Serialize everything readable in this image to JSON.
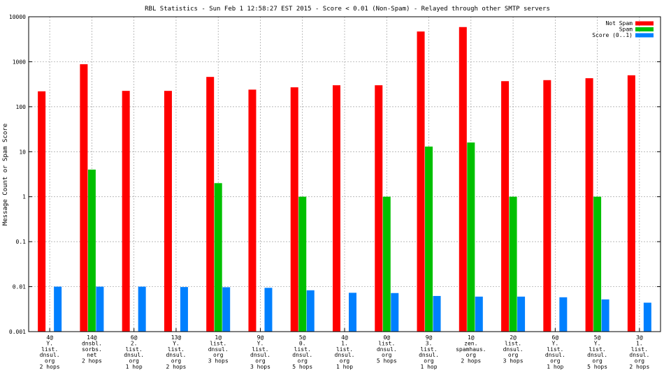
{
  "chart_data": {
    "type": "bar",
    "title": "RBL Statistics - Sun Feb  1 12:58:27 EST 2015 - Score < 0.01 (Non-Spam) - Relayed through other SMTP servers",
    "xlabel": "",
    "ylabel": "Message Count or Spam Score",
    "yscale": "log",
    "ylim": [
      0.001,
      10000
    ],
    "yticks": [
      "0.001",
      "0.01",
      "0.1",
      "1",
      "10",
      "100",
      "1000",
      "10000"
    ],
    "grid": true,
    "legend_position": "top-right",
    "categories": [
      [
        "4@",
        "Y.",
        "list.",
        "dnsul.",
        "org",
        "2 hops"
      ],
      [
        "14@",
        "dnsbl.",
        "sorbs.",
        "net",
        "2 hops"
      ],
      [
        "6@",
        "2.",
        "list.",
        "dnsul.",
        "org",
        "1 hop"
      ],
      [
        "13@",
        "Y.",
        "list.",
        "dnsul.",
        "org",
        "2 hops"
      ],
      [
        "1@",
        "list.",
        "dnsul.",
        "org",
        "3 hops"
      ],
      [
        "9@",
        "Y.",
        "list.",
        "dnsul.",
        "org",
        "3 hops"
      ],
      [
        "5@",
        "0.",
        "list.",
        "dnsul.",
        "org",
        "5 hops"
      ],
      [
        "4@",
        "1.",
        "list.",
        "dnsul.",
        "org",
        "1 hop"
      ],
      [
        "0@",
        "list.",
        "dnsul.",
        "org",
        "5 hops"
      ],
      [
        "9@",
        "3.",
        "list.",
        "dnsul.",
        "org",
        "1 hop"
      ],
      [
        "1@",
        "zen.",
        "spamhaus.",
        "org",
        "2 hops"
      ],
      [
        "2@",
        "list.",
        "dnsul.",
        "org",
        "3 hops"
      ],
      [
        "6@",
        "Y.",
        "list.",
        "dnsul.",
        "org",
        "1 hop"
      ],
      [
        "5@",
        "Y.",
        "list.",
        "dnsul.",
        "org",
        "5 hops"
      ],
      [
        "3@",
        "1.",
        "list.",
        "dnsul.",
        "org",
        "2 hops"
      ]
    ],
    "series": [
      {
        "name": "Not Spam",
        "color": "#ff0000",
        "values": [
          220,
          880,
          225,
          225,
          460,
          240,
          270,
          300,
          300,
          4700,
          5900,
          370,
          390,
          430,
          500
        ]
      },
      {
        "name": "Spam",
        "color": "#00c000",
        "values": [
          null,
          4,
          null,
          null,
          2,
          null,
          1,
          null,
          1,
          13,
          16,
          1,
          null,
          1,
          null
        ]
      },
      {
        "name": "Score (0..1)",
        "color": "#0080ff",
        "values": [
          0.01,
          0.01,
          0.01,
          0.0098,
          0.0097,
          0.0094,
          0.0083,
          0.0073,
          0.0072,
          0.0062,
          0.006,
          0.006,
          0.0058,
          0.0052,
          0.0044
        ]
      }
    ]
  }
}
